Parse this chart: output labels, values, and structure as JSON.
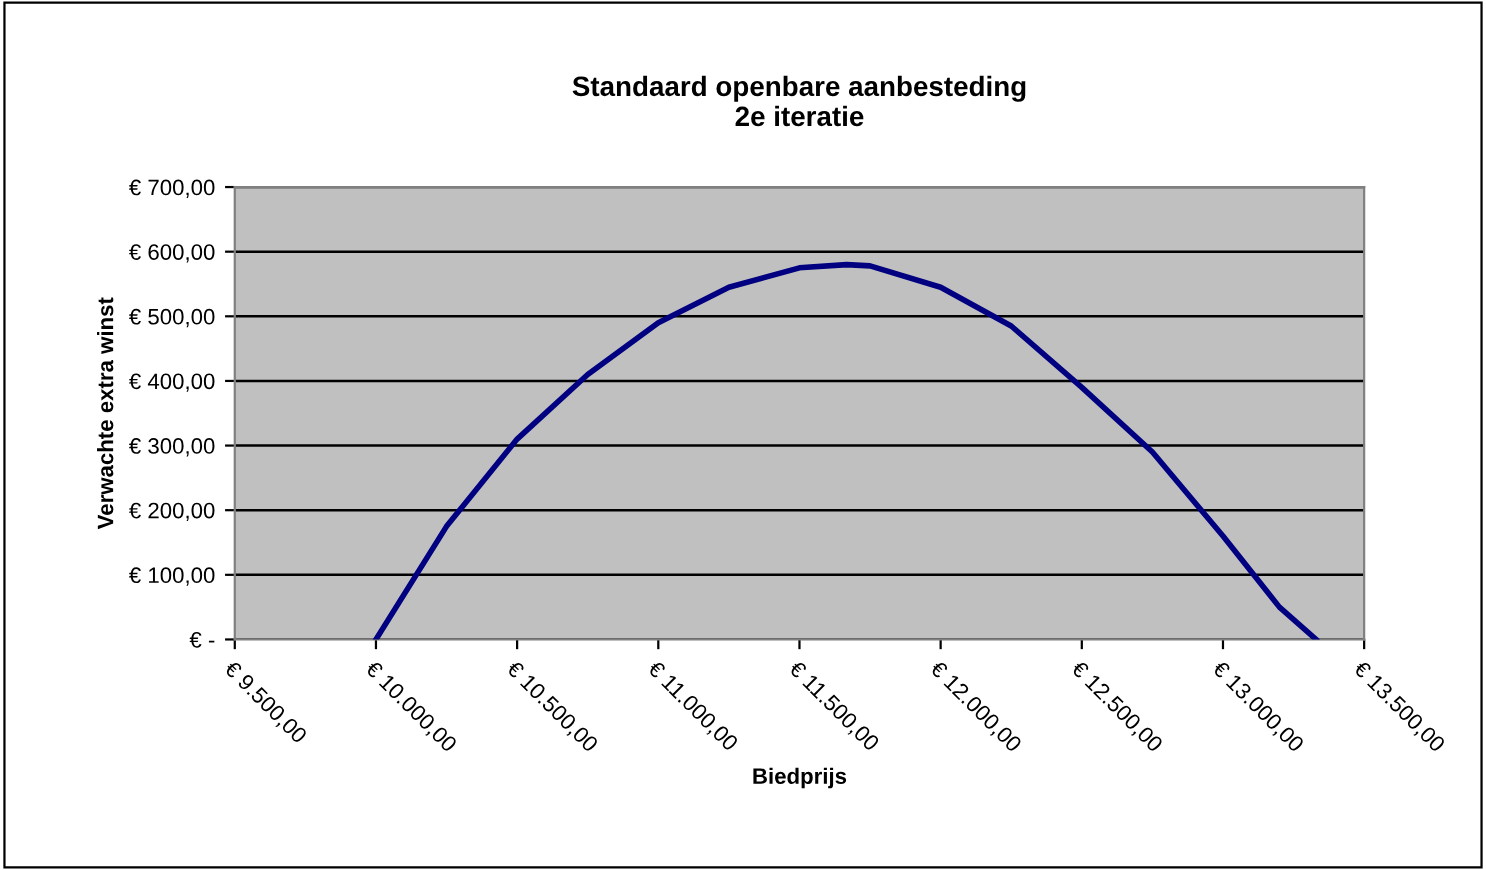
{
  "chart_data": {
    "type": "line",
    "title": "Standaard openbare aanbesteding\n2e iteratie",
    "xlabel": "Biedprijs",
    "ylabel": "Verwachte extra winst",
    "series": [
      {
        "color": "#000080",
        "x": [
          10000,
          10250,
          10500,
          10750,
          11000,
          11250,
          11500,
          11667,
          11750,
          12000,
          12250,
          12500,
          12750,
          13000,
          13200,
          13330
        ],
        "values": [
          0,
          175,
          310,
          410,
          490,
          545,
          575,
          580,
          578,
          545,
          485,
          390,
          290,
          160,
          50,
          0
        ]
      }
    ],
    "xlim": [
      9500,
      13500
    ],
    "ylim": [
      0,
      700
    ],
    "xticks": [
      {
        "value": 9500,
        "label": "€ 9.500,00"
      },
      {
        "value": 10000,
        "label": "€ 10.000,00"
      },
      {
        "value": 10500,
        "label": "€ 10.500,00"
      },
      {
        "value": 11000,
        "label": "€ 11.000,00"
      },
      {
        "value": 11500,
        "label": "€ 11.500,00"
      },
      {
        "value": 12000,
        "label": "€ 12.000,00"
      },
      {
        "value": 12500,
        "label": "€ 12.500,00"
      },
      {
        "value": 13000,
        "label": "€ 13.000,00"
      },
      {
        "value": 13500,
        "label": "€ 13.500,00"
      }
    ],
    "yticks": [
      {
        "value": 0,
        "label": "€ -"
      },
      {
        "value": 100,
        "label": "€ 100,00"
      },
      {
        "value": 200,
        "label": "€ 200,00"
      },
      {
        "value": 300,
        "label": "€ 300,00"
      },
      {
        "value": 400,
        "label": "€ 400,00"
      },
      {
        "value": 500,
        "label": "€ 500,00"
      },
      {
        "value": 600,
        "label": "€ 600,00"
      },
      {
        "value": 700,
        "label": "€ 700,00"
      }
    ],
    "grid": "y",
    "legend": false,
    "marker": "none",
    "line_style": "solid"
  }
}
